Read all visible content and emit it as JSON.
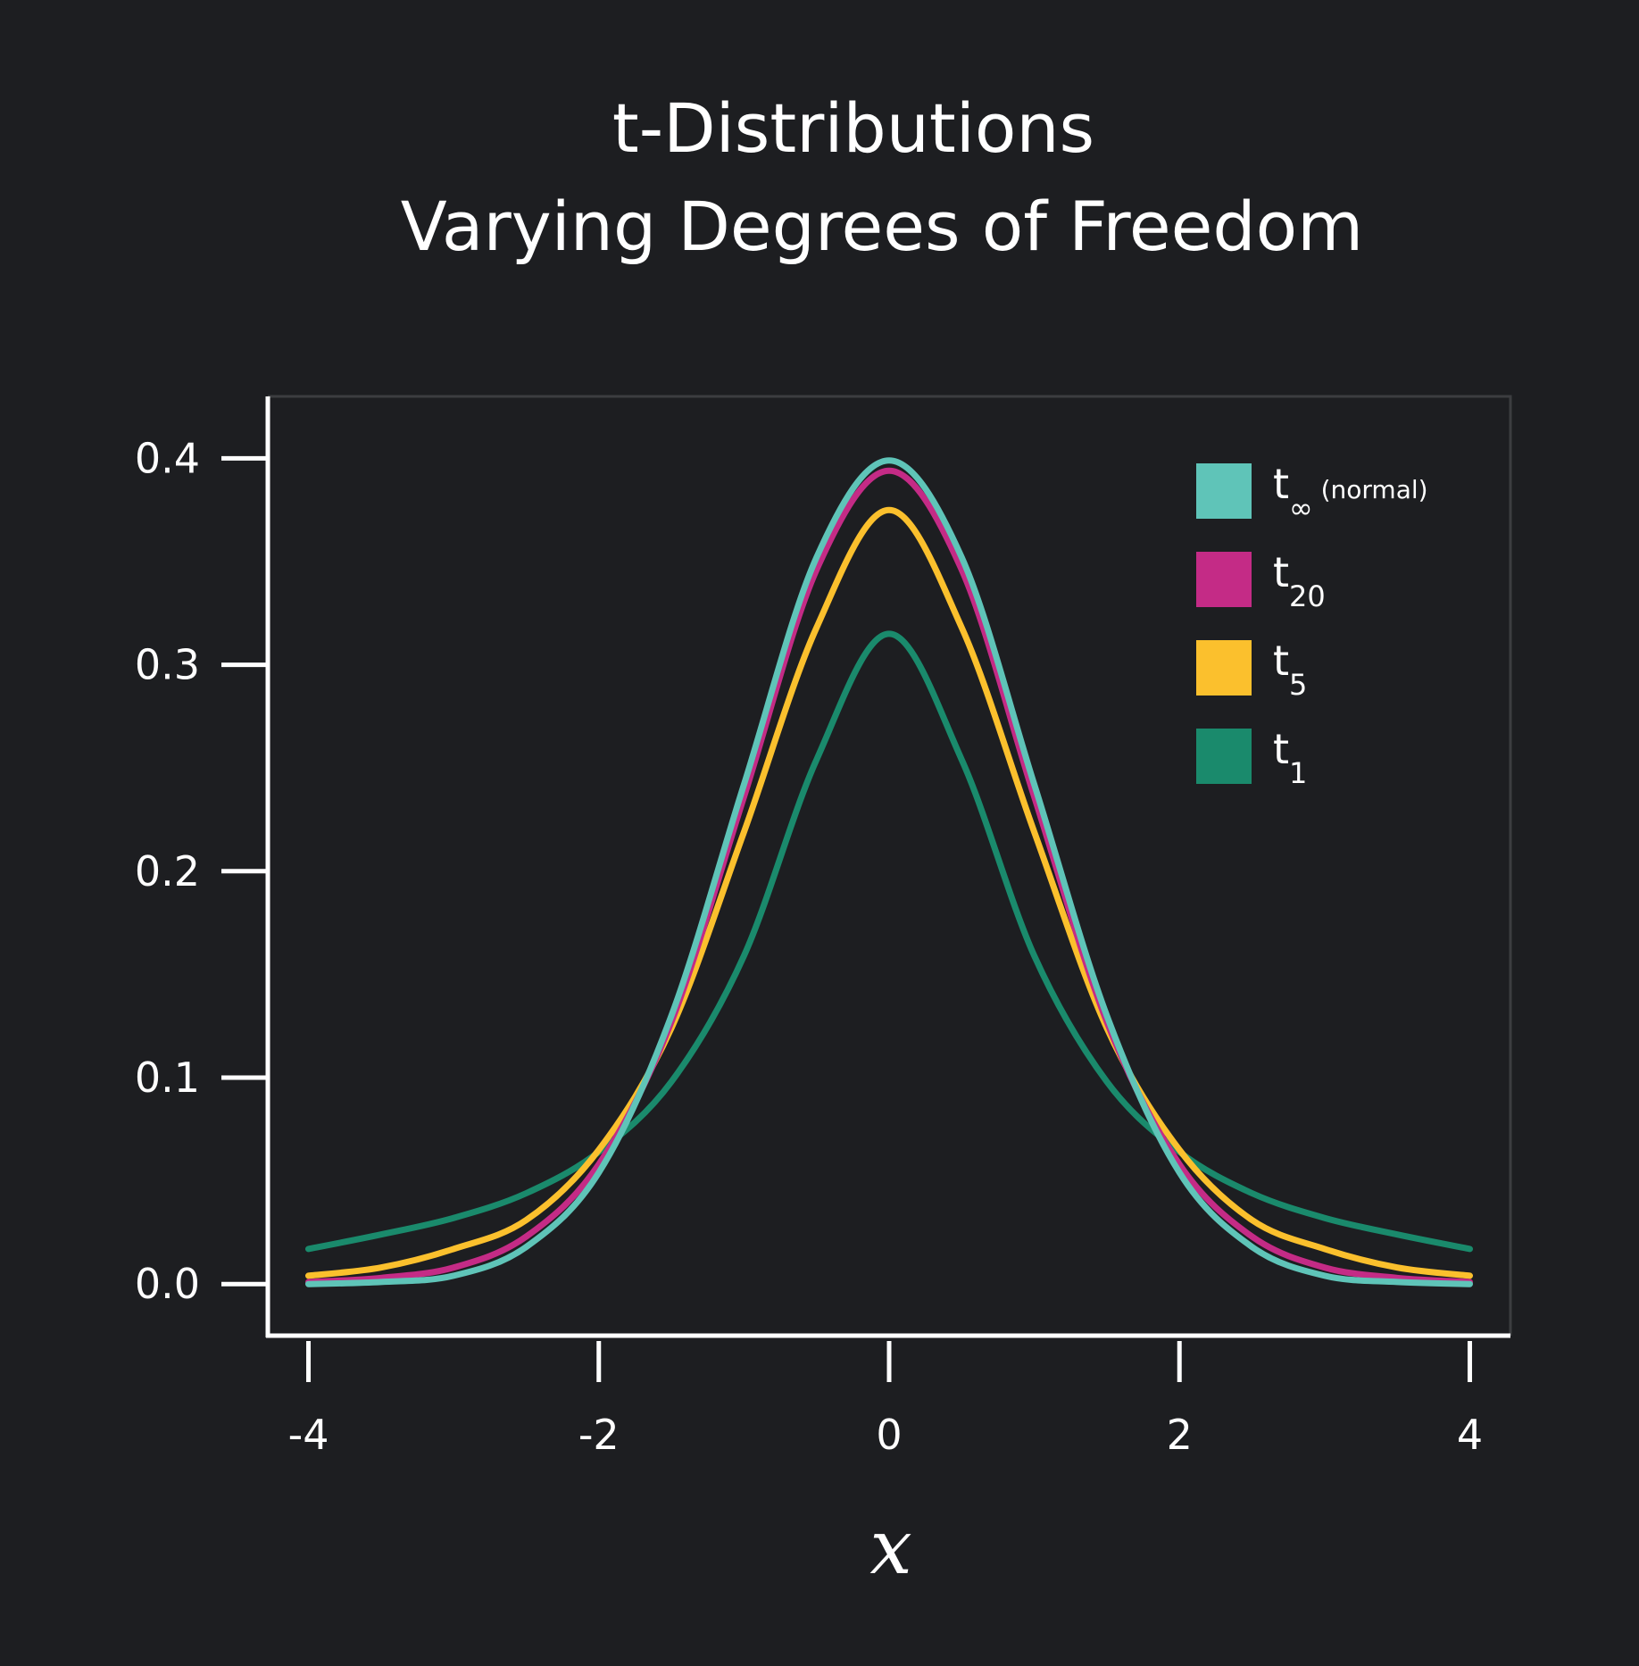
{
  "chart_data": {
    "type": "line",
    "title": "t-Distributions",
    "subtitle": "Varying Degrees of Freedom",
    "xlabel": "x",
    "x": [
      -4,
      -3.5,
      -3,
      -2.5,
      -2,
      -1.5,
      -1,
      -0.5,
      0,
      0.5,
      1,
      1.5,
      2,
      2.5,
      3,
      3.5,
      4
    ],
    "series": [
      {
        "name": "t∞ (normal)",
        "color": "#5fc4b8",
        "values": [
          0.0,
          0.001,
          0.004,
          0.018,
          0.054,
          0.13,
          0.242,
          0.352,
          0.399,
          0.352,
          0.242,
          0.13,
          0.054,
          0.018,
          0.004,
          0.001,
          0.0
        ]
      },
      {
        "name": "t20",
        "color": "#c42b86",
        "values": [
          0.001,
          0.003,
          0.008,
          0.023,
          0.058,
          0.127,
          0.236,
          0.346,
          0.394,
          0.346,
          0.236,
          0.127,
          0.058,
          0.023,
          0.008,
          0.003,
          0.001
        ]
      },
      {
        "name": "t5",
        "color": "#fbc02d",
        "values": [
          0.004,
          0.008,
          0.017,
          0.031,
          0.065,
          0.124,
          0.219,
          0.318,
          0.375,
          0.318,
          0.219,
          0.124,
          0.065,
          0.031,
          0.017,
          0.008,
          0.004
        ]
      },
      {
        "name": "t1",
        "color": "#1a8a6c",
        "values": [
          0.017,
          0.024,
          0.032,
          0.044,
          0.064,
          0.098,
          0.159,
          0.254,
          0.315,
          0.254,
          0.159,
          0.098,
          0.064,
          0.044,
          0.032,
          0.024,
          0.017
        ]
      }
    ],
    "xlim": [
      -4.28,
      4.28
    ],
    "ylim": [
      -0.025,
      0.43
    ],
    "xticks": [
      -4,
      -2,
      0,
      2,
      4
    ],
    "yticks": [
      {
        "value": 0,
        "label": "0.0"
      },
      0.1,
      0.2,
      0.3,
      0.4
    ],
    "legend": "upper right"
  }
}
